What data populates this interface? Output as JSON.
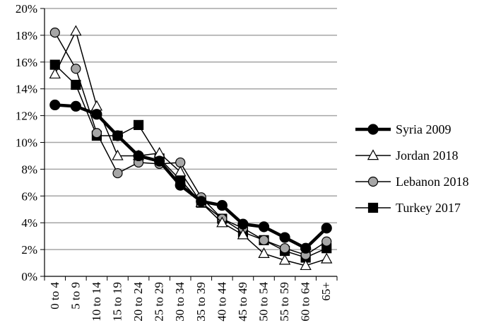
{
  "chart_data": {
    "type": "line",
    "categories": [
      "0 to 4",
      "5 to 9",
      "10 to 14",
      "15 to 19",
      "20 to 24",
      "25 to 29",
      "30 to 34",
      "35 to 39",
      "40 to 44",
      "45 to 49",
      "50 to 54",
      "55 to 59",
      "60 to 64",
      "65+"
    ],
    "y_ticks": [
      "0%",
      "2%",
      "4%",
      "6%",
      "8%",
      "10%",
      "12%",
      "14%",
      "16%",
      "18%",
      "20%"
    ],
    "ylim": [
      0,
      20
    ],
    "grid": "horizontal",
    "legend_position": "right",
    "series": [
      {
        "name": "Syria 2009",
        "marker": "circle",
        "color": "#000000",
        "fill": "#000000",
        "style": "thick",
        "values": [
          12.8,
          12.7,
          12.1,
          10.5,
          9.0,
          8.6,
          6.8,
          5.6,
          5.3,
          3.9,
          3.7,
          2.9,
          2.1,
          3.6
        ]
      },
      {
        "name": "Jordan 2018",
        "marker": "triangle",
        "color": "#000000",
        "fill": "#ffffff",
        "style": "thin",
        "values": [
          15.1,
          18.3,
          12.7,
          9.0,
          9.0,
          9.2,
          7.8,
          5.5,
          4.0,
          3.1,
          1.7,
          1.2,
          0.8,
          1.3
        ]
      },
      {
        "name": "Lebanon 2018",
        "marker": "circle",
        "color": "#000000",
        "fill": "#a6a6a6",
        "style": "thin",
        "values": [
          18.2,
          15.5,
          10.7,
          7.7,
          8.5,
          8.4,
          8.5,
          5.9,
          4.3,
          3.6,
          2.7,
          2.1,
          1.6,
          2.6
        ]
      },
      {
        "name": "Turkey 2017",
        "marker": "square",
        "color": "#000000",
        "fill": "#000000",
        "style": "thin",
        "values": [
          15.8,
          14.3,
          10.5,
          10.5,
          11.3,
          8.8,
          7.2,
          5.5,
          4.3,
          3.3,
          2.7,
          1.9,
          1.4,
          2.1
        ]
      }
    ]
  }
}
